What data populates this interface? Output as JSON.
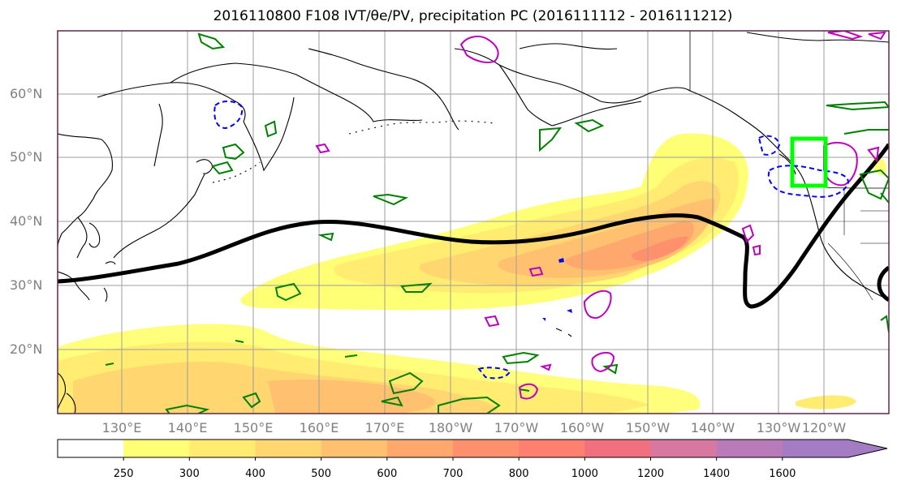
{
  "title": "2016110800 F108 IVT/θe/PV, precipitation PC (2016111112 - 2016111212)",
  "lat_labels": [
    "60°N",
    "50°N",
    "40°N",
    "30°N",
    "20°N"
  ],
  "lon_labels": [
    "130°E",
    "140°E",
    "150°E",
    "160°E",
    "170°E",
    "180°W",
    "170°W",
    "160°W",
    "150°W",
    "140°W",
    "130°W",
    "120°W"
  ],
  "colorbar": {
    "levels": [
      "250",
      "300",
      "400",
      "500",
      "600",
      "700",
      "800",
      "1000",
      "1200",
      "1400",
      "1600"
    ],
    "colors": [
      "#ffffff",
      "#ffff75",
      "#ffec70",
      "#ffd670",
      "#ffc070",
      "#ffa86e",
      "#ff906e",
      "#ff8070",
      "#f07080",
      "#d878a0",
      "#b87ab8",
      "#a37cc3"
    ]
  },
  "colors": {
    "frame": "#5a2a4a",
    "coast": "#000000",
    "grid": "#9e9e9e",
    "front": "#000000",
    "green_contour": "#008000",
    "magenta_contour": "#c000c0",
    "blue_contour": "#0000ff",
    "box": "#00ff00"
  }
}
